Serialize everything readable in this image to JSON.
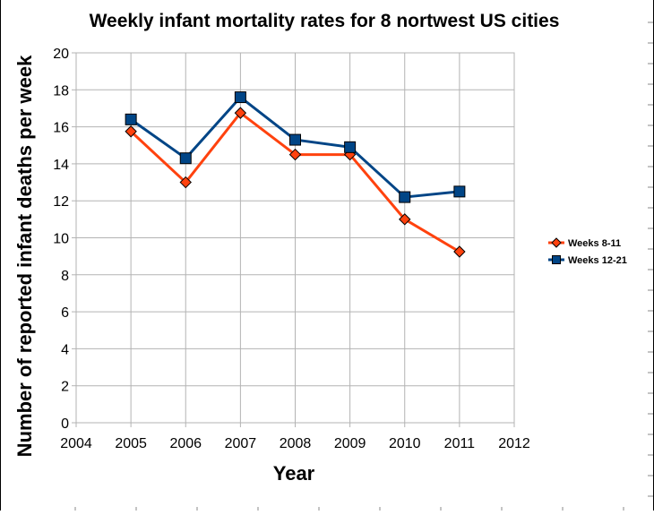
{
  "chart_data": {
    "type": "line",
    "title": "Weekly infant mortality rates for 8 nortwest US cities",
    "xlabel": "Year",
    "ylabel": "Number of reported infant deaths per week",
    "xlim": [
      2004,
      2012
    ],
    "ylim": [
      0,
      20
    ],
    "x_ticks": [
      2004,
      2005,
      2006,
      2007,
      2008,
      2009,
      2010,
      2011,
      2012
    ],
    "y_ticks": [
      0,
      2,
      4,
      6,
      8,
      10,
      12,
      14,
      16,
      18,
      20
    ],
    "grid": true,
    "legend_position": "right",
    "series": [
      {
        "name": "Weeks 8-11",
        "color": "#ff420e",
        "marker": "diamond",
        "x": [
          2005,
          2006,
          2007,
          2008,
          2009,
          2010,
          2011
        ],
        "values": [
          15.75,
          13.0,
          16.75,
          14.5,
          14.5,
          11.0,
          9.25
        ]
      },
      {
        "name": "Weeks 12-21",
        "color": "#004586",
        "marker": "square",
        "x": [
          2005,
          2006,
          2007,
          2008,
          2009,
          2010,
          2011
        ],
        "values": [
          16.4,
          14.3,
          17.6,
          15.3,
          14.9,
          12.2,
          12.5
        ]
      }
    ]
  }
}
